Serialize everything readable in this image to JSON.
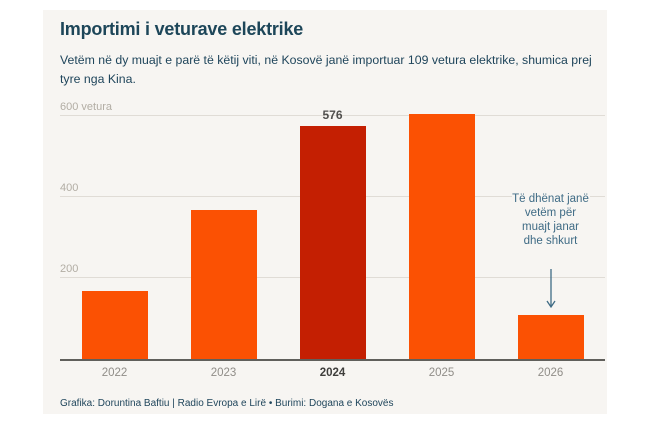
{
  "card": {
    "title": "Importimi i veturave elektrike",
    "subtitle": "Vetëm në dy muajt e parë të këtij viti, në Kosovë janë importuar 109 vetura elektrike, shumica prej tyre nga Kina.",
    "footer": "Grafika: Doruntina Baftiu | Radio Evropa e Lirë • Burimi: Dogana e Kosovës"
  },
  "chart_data": {
    "type": "bar",
    "title": "Importimi i veturave elektrike",
    "categories": [
      "2022",
      "2023",
      "2024",
      "2025",
      "2026"
    ],
    "values": [
      167,
      368,
      576,
      605,
      109
    ],
    "ylabel": "vetura",
    "xlabel": "",
    "ylim": [
      0,
      640
    ],
    "y_ticks": [
      200,
      400,
      600
    ],
    "y_tick_labels": [
      "200",
      "400",
      "600 vetura"
    ],
    "grid": true,
    "legend": false,
    "highlight_category": "2024",
    "highlight_value_label": "576",
    "annotation": {
      "text": "Të dhënat janë vetëm për muajt janar dhe shkurt",
      "target_category": "2026"
    },
    "colors": {
      "bar": "#fb5103",
      "highlight_bar": "#c41f02",
      "annotation_text": "#3f6b85",
      "card_background": "#f7f5f2",
      "title_text": "#1d4659"
    }
  }
}
